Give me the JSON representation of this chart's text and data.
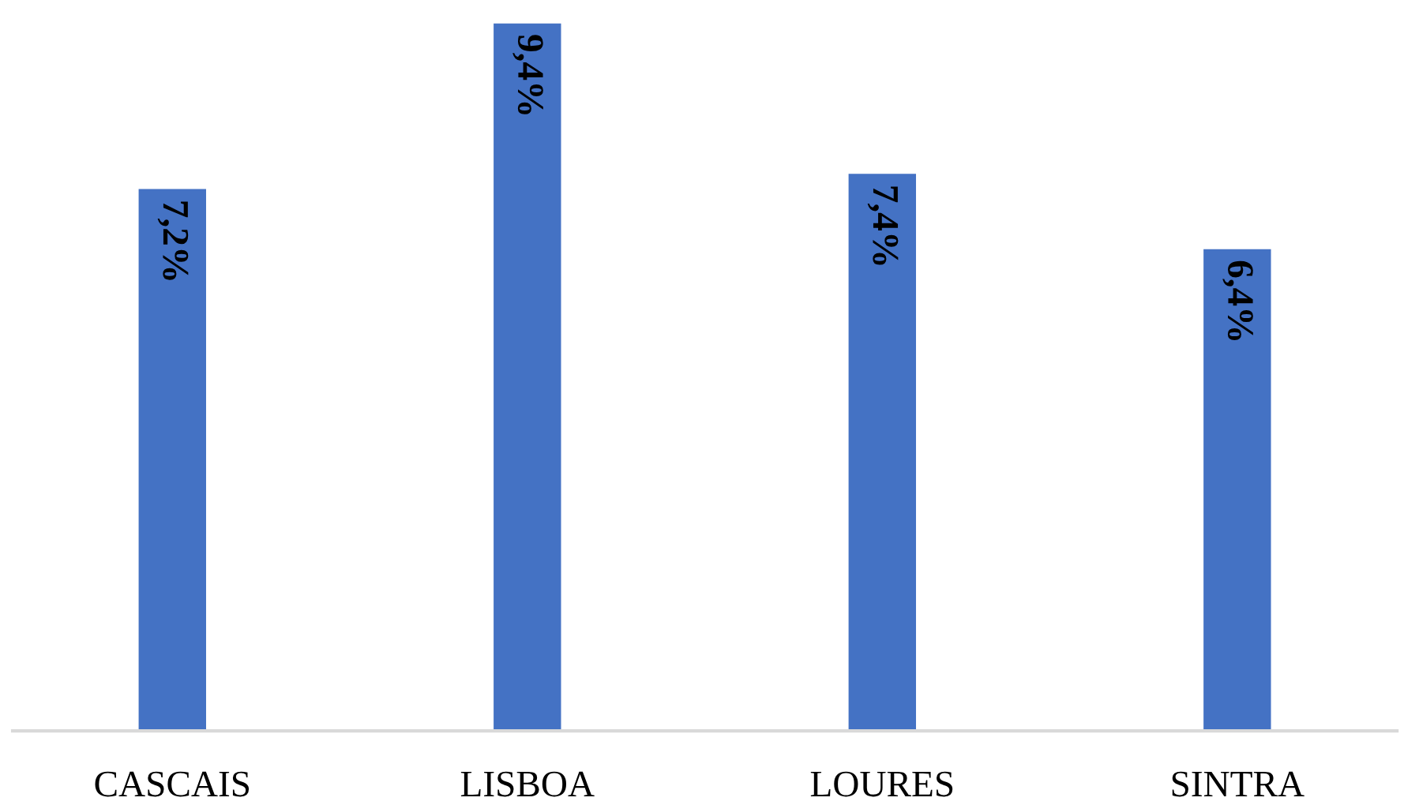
{
  "chart_data": {
    "type": "bar",
    "categories": [
      "CASCAIS",
      "LISBOA",
      "LOURES",
      "SINTRA"
    ],
    "values": [
      7.2,
      9.4,
      7.4,
      6.4
    ],
    "value_labels": [
      "7,2%",
      "9,4%",
      "7,4%",
      "6,4%"
    ],
    "color": "#4472c4",
    "grid": false,
    "legend": false
  }
}
